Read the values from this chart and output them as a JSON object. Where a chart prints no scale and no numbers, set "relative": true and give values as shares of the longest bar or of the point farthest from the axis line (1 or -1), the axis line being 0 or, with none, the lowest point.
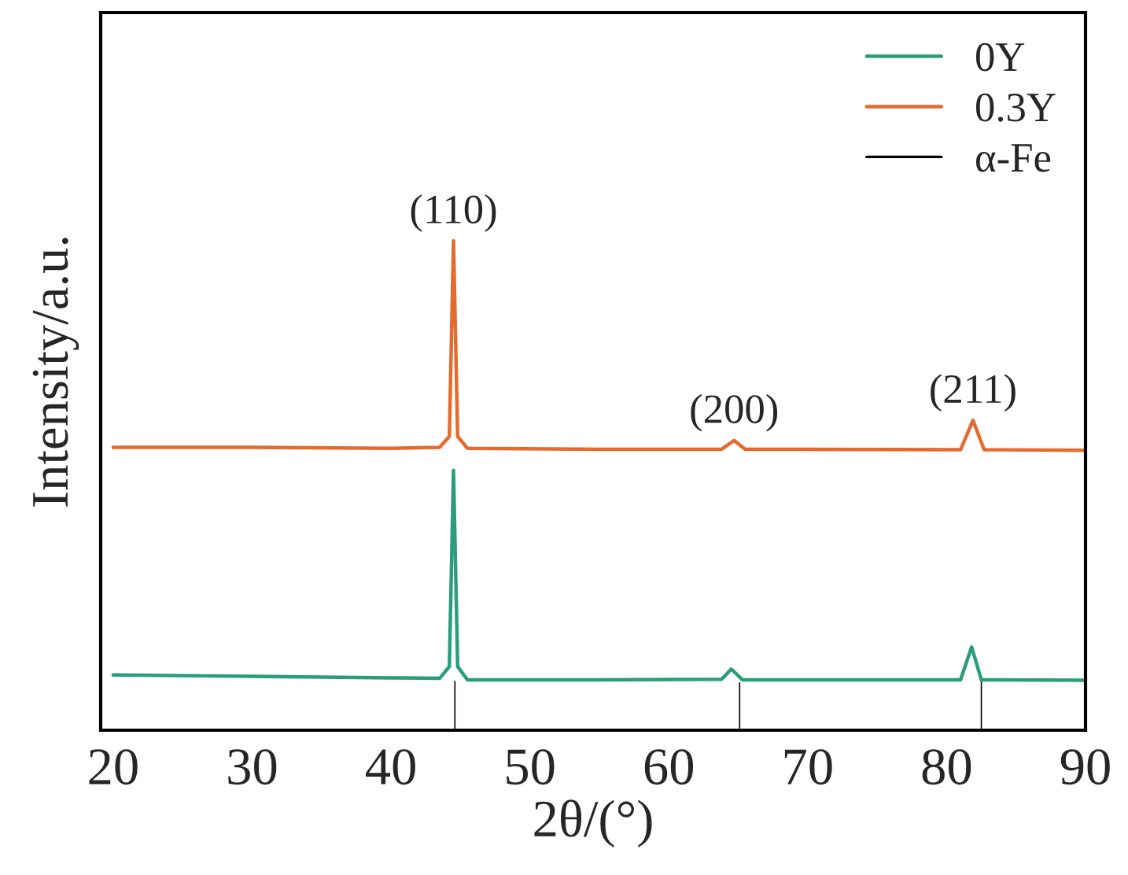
{
  "chart_data": {
    "type": "line",
    "relative": true,
    "xlabel": "2θ/(°)",
    "ylabel": "Intensity/a.u.",
    "xlim": [
      19.1,
      90
    ],
    "xticks": [
      20,
      30,
      40,
      50,
      60,
      70,
      80,
      90
    ],
    "legend": "top right",
    "grid": false,
    "series": [
      {
        "name": "0Y",
        "color": "#2a9d7c",
        "x": [
          20,
          30,
          40,
          43.5,
          44.2,
          44.5,
          44.8,
          45.5,
          55,
          63.8,
          64.5,
          65.3,
          81,
          81.8,
          82.5,
          90
        ],
        "values": [
          0.113,
          0.11,
          0.107,
          0.106,
          0.13,
          0.531,
          0.13,
          0.103,
          0.103,
          0.104,
          0.125,
          0.103,
          0.103,
          0.17,
          0.103,
          0.102
        ]
      },
      {
        "name": "0.3Y",
        "color": "#e46a2e",
        "x": [
          20,
          30,
          40,
          43.5,
          44.2,
          44.5,
          44.8,
          45.5,
          55,
          63.8,
          64.7,
          65.5,
          81,
          81.9,
          82.7,
          90
        ],
        "values": [
          0.578,
          0.578,
          0.576,
          0.578,
          0.6,
          1.0,
          0.6,
          0.576,
          0.574,
          0.574,
          0.592,
          0.574,
          0.573,
          0.633,
          0.573,
          0.572
        ]
      },
      {
        "name": "α-Fe",
        "type": "bar",
        "color": "#000000",
        "x": [
          44.6,
          65.1,
          82.5
        ],
        "values": [
          0.103,
          0.1,
          0.109
        ]
      }
    ],
    "annotations": [
      {
        "text": "(110)",
        "x": 44.5,
        "y": 1.0
      },
      {
        "text": "(200)",
        "x": 64.7,
        "y": 0.592
      },
      {
        "text": "(211)",
        "x": 81.9,
        "y": 0.633
      }
    ]
  }
}
